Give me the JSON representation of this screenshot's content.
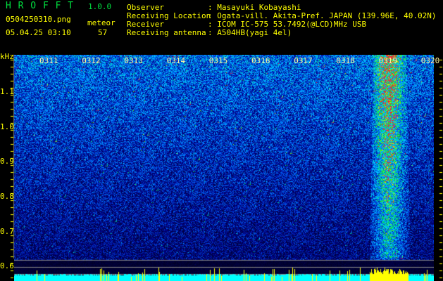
{
  "app": {
    "name": "H R O F F T",
    "version": "1.0.0"
  },
  "file": {
    "name": "0504250310.png",
    "datetime": "05.04.25 03:10"
  },
  "meteor": {
    "label": "meteor",
    "count": "57"
  },
  "info": [
    {
      "label": "Observer",
      "value": ": Masayuki Kobayashi"
    },
    {
      "label": "Receiving Location",
      "value": ": Ogata-vill. Akita-Pref. JAPAN (139.96E, 40.02N)"
    },
    {
      "label": "Receiver",
      "value": ": ICOM IC-575 53.7492(@LCD)MHz USB"
    },
    {
      "label": "Receiving antenna",
      "value": ": A504HB(yagi 4el)"
    }
  ],
  "axis": {
    "y_unit": "kHz",
    "y_ticks": [
      "1.1",
      "1.0",
      "0.9",
      "0.8",
      "0.7",
      "0.6"
    ],
    "x_ticks": [
      "0311",
      "0312",
      "0313",
      "0314",
      "0315",
      "0316",
      "0317",
      "0318",
      "0319",
      "0320"
    ]
  },
  "colors": {
    "text": "#ffff00",
    "title": "#00e040",
    "band": "#00ffff",
    "spike": "#ffff00"
  }
}
